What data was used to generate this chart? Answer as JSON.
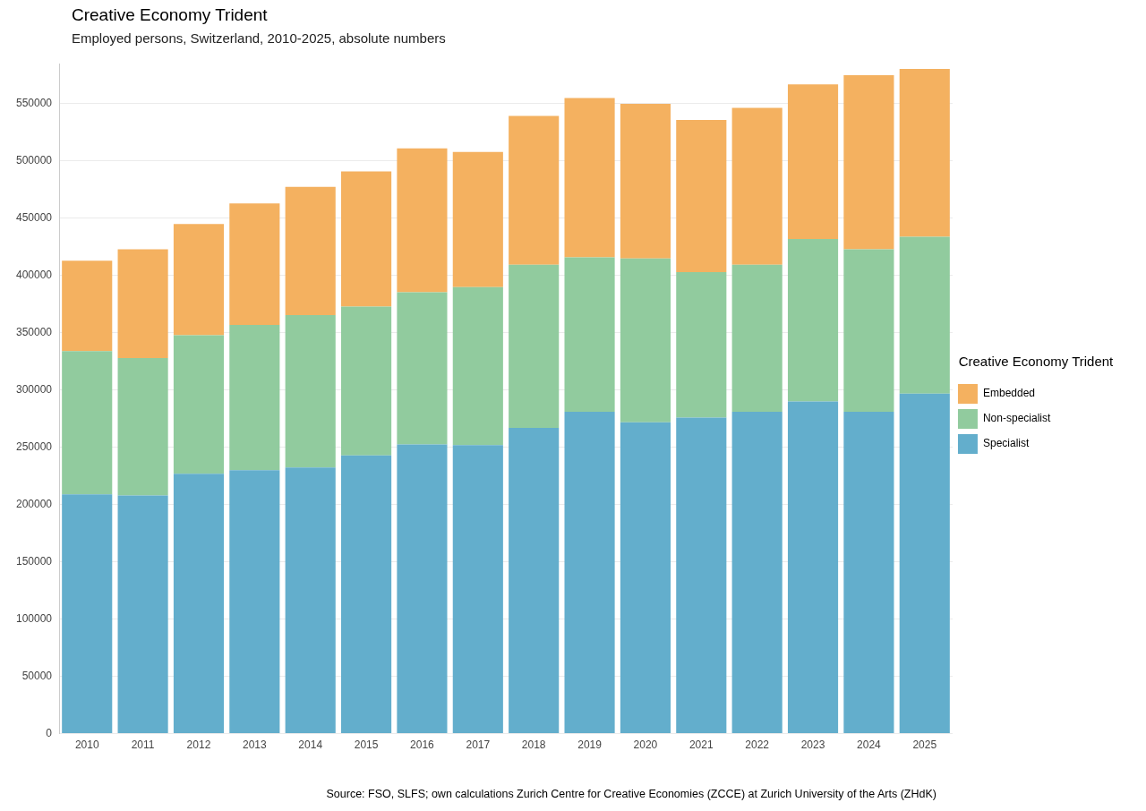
{
  "chart_data": {
    "type": "bar",
    "title": "Creative Economy Trident",
    "subtitle": "Employed persons, Switzerland, 2010-2025, absolute numbers",
    "legend_title": "Creative Economy Trident",
    "categories": [
      "2010",
      "2011",
      "2012",
      "2013",
      "2014",
      "2015",
      "2016",
      "2017",
      "2018",
      "2019",
      "2020",
      "2021",
      "2022",
      "2023",
      "2024",
      "2025"
    ],
    "stacked": true,
    "series": [
      {
        "name": "Specialist",
        "color": "#63aecc",
        "values": [
          209000,
          208000,
          227000,
          230000,
          232500,
          243000,
          252500,
          252000,
          267000,
          281000,
          272000,
          276000,
          281000,
          290000,
          281000,
          297000
        ]
      },
      {
        "name": "Non-specialist",
        "color": "#91cb9e",
        "values": [
          125000,
          120000,
          121000,
          127000,
          133000,
          130000,
          133000,
          138000,
          142500,
          135000,
          143000,
          127000,
          128500,
          142000,
          142000,
          137000
        ]
      },
      {
        "name": "Embedded",
        "color": "#f4b160",
        "values": [
          79000,
          95000,
          97000,
          106000,
          112000,
          118000,
          125500,
          118000,
          130000,
          139000,
          135000,
          133000,
          137000,
          135000,
          152000,
          146500
        ]
      }
    ],
    "ylim": [
      0,
      585000
    ],
    "yticks": [
      0,
      50000,
      100000,
      150000,
      200000,
      250000,
      300000,
      350000,
      400000,
      450000,
      500000,
      550000
    ],
    "grid": "y",
    "legend": "right",
    "annotations": [
      "Source: FSO, SLFS; own calculations Zurich Centre for Creative Economies (ZCCE) at Zurich University of the Arts (ZHdK)"
    ]
  }
}
